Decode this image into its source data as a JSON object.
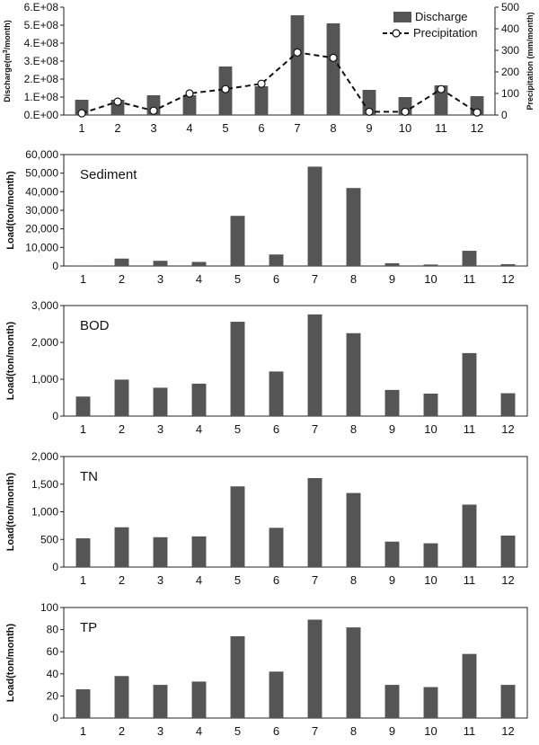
{
  "chart_data": [
    {
      "type": "bar+line",
      "categories": [
        "1",
        "2",
        "3",
        "4",
        "5",
        "6",
        "7",
        "8",
        "9",
        "10",
        "11",
        "12"
      ],
      "series": [
        {
          "name": "Discharge",
          "type": "bar",
          "axis": "left",
          "values": [
            85000000.0,
            85000000.0,
            110000000.0,
            110000000.0,
            270000000.0,
            160000000.0,
            555000000.0,
            510000000.0,
            140000000.0,
            100000000.0,
            165000000.0,
            105000000.0
          ]
        },
        {
          "name": "Precipitation",
          "type": "line",
          "axis": "right",
          "values": [
            8,
            62,
            20,
            100,
            120,
            145,
            290,
            265,
            15,
            15,
            120,
            12
          ]
        }
      ],
      "ylabel_left_prefix": "Discharge(m",
      "ylabel_left_sup": "3",
      "ylabel_left_suffix": "/month)",
      "ylabel_right": "Precipitation (mm/month)",
      "y_left_ticks": [
        "0.E+00",
        "1.E+08",
        "2.E+08",
        "3.E+08",
        "4.E+08",
        "5.E+08",
        "6.E+08"
      ],
      "ylim_left": [
        0,
        600000000
      ],
      "y_right_ticks": [
        "0",
        "100",
        "200",
        "300",
        "400",
        "500"
      ],
      "ylim_right": [
        0,
        500
      ],
      "legend_position": "top-right"
    },
    {
      "type": "bar",
      "label": "Sediment",
      "ylabel": "Load(ton/month)",
      "categories": [
        "1",
        "2",
        "3",
        "4",
        "5",
        "6",
        "7",
        "8",
        "9",
        "10",
        "11",
        "12"
      ],
      "values": [
        300,
        4000,
        2800,
        2200,
        27000,
        6200,
        53500,
        42000,
        1500,
        800,
        8200,
        1000
      ],
      "y_ticks": [
        "0",
        "10,000",
        "20,000",
        "30,000",
        "40,000",
        "50,000",
        "60,000"
      ],
      "ylim": [
        0,
        60000
      ]
    },
    {
      "type": "bar",
      "label": "BOD",
      "ylabel": "Load(ton/month)",
      "categories": [
        "1",
        "2",
        "3",
        "4",
        "5",
        "6",
        "7",
        "8",
        "9",
        "10",
        "11",
        "12"
      ],
      "values": [
        530,
        990,
        770,
        880,
        2560,
        1210,
        2760,
        2250,
        710,
        610,
        1710,
        620
      ],
      "y_ticks": [
        "0",
        "1,000",
        "2,000",
        "3,000"
      ],
      "ylim": [
        0,
        3000
      ]
    },
    {
      "type": "bar",
      "label": "TN",
      "ylabel": "Load(ton/month)",
      "categories": [
        "1",
        "2",
        "3",
        "4",
        "5",
        "6",
        "7",
        "8",
        "9",
        "10",
        "11",
        "12"
      ],
      "values": [
        520,
        720,
        540,
        555,
        1460,
        710,
        1610,
        1340,
        460,
        430,
        1130,
        570
      ],
      "y_ticks": [
        "0",
        "500",
        "1,000",
        "1,500",
        "2,000"
      ],
      "ylim": [
        0,
        2000
      ]
    },
    {
      "type": "bar",
      "label": "TP",
      "ylabel": "Load(ton/month)",
      "categories": [
        "1",
        "2",
        "3",
        "4",
        "5",
        "6",
        "7",
        "8",
        "9",
        "10",
        "11",
        "12"
      ],
      "values": [
        26,
        38,
        30,
        33,
        74,
        42,
        89,
        82,
        30,
        28,
        58,
        30
      ],
      "y_ticks": [
        "0",
        "20",
        "40",
        "60",
        "80",
        "100"
      ],
      "ylim": [
        0,
        100
      ]
    }
  ]
}
